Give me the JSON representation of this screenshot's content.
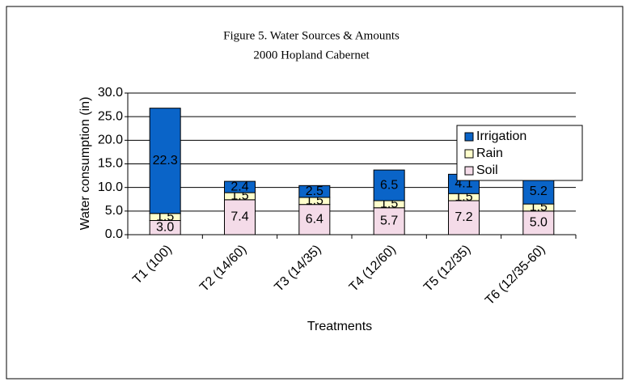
{
  "chart_data": {
    "type": "stacked-bar",
    "title": "Figure 5. Water Sources & Amounts",
    "subtitle": "2000 Hopland Cabernet",
    "y_label": "Water consumption (in)",
    "x_label": "Treatments",
    "categories": [
      "T1 (100)",
      "T2 (14/60)",
      "T3 (14/35)",
      "T4 (12/60)",
      "T5 (12/35)",
      "T6 (12/35-60)"
    ],
    "series": [
      {
        "name": "Soil",
        "color": "#f4dbe8",
        "values": [
          3.0,
          7.4,
          6.4,
          5.7,
          7.2,
          5.0
        ],
        "value_labels": [
          "3.0",
          "7.4",
          "6.4",
          "5.7",
          "7.2",
          "5.0"
        ]
      },
      {
        "name": "Rain",
        "color": "#ffffcc",
        "values": [
          1.5,
          1.5,
          1.5,
          1.5,
          1.5,
          1.5
        ],
        "value_labels": [
          "1.5",
          "1.5",
          "1.5",
          "1.5",
          "1.5",
          "1.5"
        ]
      },
      {
        "name": "Irrigation",
        "color": "#0a64c8",
        "values": [
          22.3,
          2.4,
          2.5,
          6.5,
          4.1,
          5.2
        ],
        "value_labels": [
          "22.3",
          "2.4",
          "2.5",
          "6.5",
          "4.1",
          "5.2"
        ]
      }
    ],
    "ylim": [
      0,
      30
    ],
    "yticks": [
      {
        "value": 0,
        "label": "0.0"
      },
      {
        "value": 5,
        "label": "5.0"
      },
      {
        "value": 10,
        "label": "10.0"
      },
      {
        "value": 15,
        "label": "15.0"
      },
      {
        "value": 20,
        "label": "20.0"
      },
      {
        "value": 25,
        "label": "25.0"
      },
      {
        "value": 30,
        "label": "30.0"
      }
    ],
    "grid": true,
    "legend": "right"
  }
}
